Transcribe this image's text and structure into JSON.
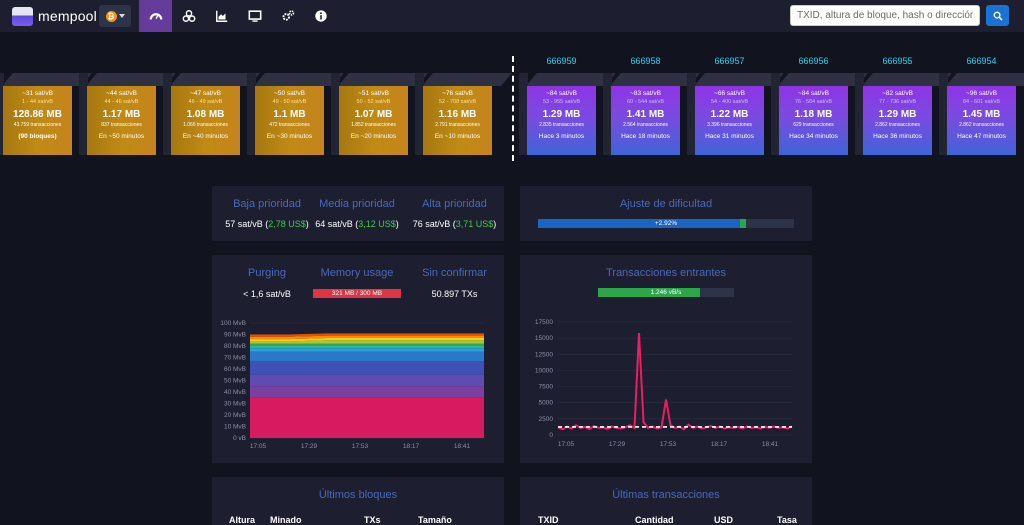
{
  "brand": {
    "name": "mempool",
    "network_icon": "bitcoin-icon"
  },
  "nav": [
    {
      "icon": "dashboard-icon",
      "active": true
    },
    {
      "icon": "blocks-icon",
      "active": false
    },
    {
      "icon": "graphs-icon",
      "active": false
    },
    {
      "icon": "tv-icon",
      "active": false
    },
    {
      "icon": "cogs-icon",
      "active": false
    },
    {
      "icon": "info-icon",
      "active": false
    }
  ],
  "search": {
    "placeholder": "TXID, altura de bloque, hash o dirección",
    "button_icon": "search-icon"
  },
  "mempool_blocks": [
    {
      "fee": "~31 sat/vB",
      "range": "1 - 44 sat/vB",
      "size": "128.86 MB",
      "txs": "43.759 transacciones",
      "eta": "(90 bloques)"
    },
    {
      "fee": "~44 sat/vB",
      "range": "44 - 46 sat/vB",
      "size": "1.17 MB",
      "txs": "837 transacciones",
      "eta": "En ~50 minutos"
    },
    {
      "fee": "~47 sat/vB",
      "range": "46 - 49 sat/vB",
      "size": "1.08 MB",
      "txs": "1.066 transacciones",
      "eta": "En ~40 minutos"
    },
    {
      "fee": "~50 sat/vB",
      "range": "49 - 50 sat/vB",
      "size": "1.1 MB",
      "txs": "472 transacciones",
      "eta": "En ~30 minutos"
    },
    {
      "fee": "~51 sat/vB",
      "range": "50 - 52 sat/vB",
      "size": "1.07 MB",
      "txs": "1.852 transacciones",
      "eta": "En ~20 minutos"
    },
    {
      "fee": "~76 sat/vB",
      "range": "52 - 708 sat/vB",
      "size": "1.16 MB",
      "txs": "2.791 transacciones",
      "eta": "En ~10 minutos"
    }
  ],
  "mined_blocks": [
    {
      "height": "666959",
      "fee": "~84 sat/vB",
      "range": "53 - 955 sat/vB",
      "size": "1.29 MB",
      "txs": "2.835 transacciones",
      "time": "Hace 3 minutos"
    },
    {
      "height": "666958",
      "fee": "~83 sat/vB",
      "range": "60 - 544 sat/vB",
      "size": "1.41 MB",
      "txs": "2.564 transacciones",
      "time": "Hace 18 minutos"
    },
    {
      "height": "666957",
      "fee": "~66 sat/vB",
      "range": "54 - 400 sat/vB",
      "size": "1.22 MB",
      "txs": "3.396 transacciones",
      "time": "Hace 31 minutos"
    },
    {
      "height": "666956",
      "fee": "~84 sat/vB",
      "range": "76 - 584 sat/vB",
      "size": "1.18 MB",
      "txs": "629 transacciones",
      "time": "Hace 34 minutos"
    },
    {
      "height": "666955",
      "fee": "~82 sat/vB",
      "range": "77 - 736 sat/vB",
      "size": "1.29 MB",
      "txs": "2.862 transacciones",
      "time": "Hace 36 minutos"
    },
    {
      "height": "666954",
      "fee": "~96 sat/vB",
      "range": "84 - 601 sat/vB",
      "size": "1.45 MB",
      "txs": "2.862 transacciones",
      "time": "Hace 47 minutos"
    }
  ],
  "fees": {
    "low": {
      "title": "Baja prioridad",
      "rate": "57 sat/vB",
      "usd": "2,78 US$"
    },
    "medium": {
      "title": "Media prioridad",
      "rate": "64 sat/vB",
      "usd": "3,12 US$"
    },
    "high": {
      "title": "Alta prioridad",
      "rate": "76 sat/vB",
      "usd": "3,71 US$"
    }
  },
  "difficulty": {
    "title": "Ajuste de dificultad",
    "label": "+2.92%",
    "progress_fraction": 0.79
  },
  "mempool_info": {
    "purging": {
      "title": "Purging",
      "value": "< 1,6 sat/vB"
    },
    "memory": {
      "title": "Memory usage",
      "value": "321 MB / 300 MB",
      "fraction": 1.0
    },
    "unconfirmed": {
      "title": "Sin confirmar",
      "value": "50.897 TXs"
    }
  },
  "incoming": {
    "title": "Transacciones entrantes",
    "rate": "1.246 vB/s",
    "fraction": 0.75
  },
  "latest_blocks": {
    "title": "Últimos bloques",
    "columns": [
      "Altura",
      "Minado",
      "TXs",
      "Tamaño"
    ]
  },
  "latest_txs": {
    "title": "Últimas transacciones",
    "columns": [
      "TXID",
      "Cantidad",
      "USD",
      "Tasa"
    ]
  },
  "chart_data": [
    {
      "type": "area",
      "stacked": true,
      "ylabels": [
        "100 MvB",
        "90 MvB",
        "80 MvB",
        "70 MvB",
        "60 MvB",
        "50 MvB",
        "40 MvB",
        "30 MvB",
        "20 MvB",
        "10 MvB",
        "0 vB"
      ],
      "ylim": [
        0,
        100
      ],
      "x_ticks": [
        "17:05",
        "17:29",
        "17:53",
        "18:17",
        "18:41"
      ],
      "series": [
        {
          "color": "#d81b60",
          "values": [
            35,
            35,
            35,
            35,
            35,
            35,
            35
          ]
        },
        {
          "color": "#7b3fa0",
          "values": [
            10,
            10,
            10,
            10,
            10,
            10,
            10
          ]
        },
        {
          "color": "#5e4cb0",
          "values": [
            10,
            10,
            10,
            10,
            10,
            10,
            10
          ]
        },
        {
          "color": "#3f51b5",
          "values": [
            12,
            12,
            12,
            12,
            12,
            12,
            12
          ]
        },
        {
          "color": "#2979c8",
          "values": [
            8,
            8,
            8,
            8,
            8,
            8,
            8
          ]
        },
        {
          "color": "#29a3d8",
          "values": [
            3,
            3,
            3,
            3,
            3,
            3,
            3
          ]
        },
        {
          "color": "#26b6a8",
          "values": [
            2,
            2,
            2,
            2,
            2,
            2,
            2
          ]
        },
        {
          "color": "#43a047",
          "values": [
            2,
            2,
            2,
            2,
            2,
            2,
            2
          ]
        },
        {
          "color": "#9ccc37",
          "values": [
            2,
            2,
            3,
            3,
            3,
            3,
            3
          ]
        },
        {
          "color": "#ffca28",
          "values": [
            2,
            2,
            2,
            2,
            2,
            2,
            2
          ]
        },
        {
          "color": "#fb8c00",
          "values": [
            2,
            2,
            2,
            2,
            2,
            2,
            2
          ]
        },
        {
          "color": "#e65100",
          "values": [
            2,
            2,
            2,
            2,
            2,
            2,
            2
          ]
        }
      ]
    },
    {
      "type": "line",
      "ylabels": [
        "17500",
        "15000",
        "12500",
        "10000",
        "7500",
        "5000",
        "2500",
        "0"
      ],
      "ylim": [
        0,
        17500
      ],
      "x_ticks": [
        "17:05",
        "17:29",
        "17:53",
        "18:17",
        "18:41"
      ],
      "threshold": 1246,
      "series": [
        {
          "color": "#e91e63",
          "values": [
            1200,
            900,
            1300,
            1000,
            1500,
            1100,
            1250,
            900,
            1400,
            1100,
            1200,
            950,
            1300,
            1100,
            1000,
            1200,
            1500,
            1100,
            15800,
            2000,
            1100,
            1300,
            1000,
            1200,
            5500,
            1500,
            1100,
            1300,
            900,
            1600,
            1100,
            1300,
            1000,
            1200,
            1400,
            1100,
            1300,
            1000,
            1200,
            1100,
            1250,
            1000,
            1300,
            1100,
            1200,
            1000,
            1250,
            1100,
            1300,
            1100,
            1200,
            1000,
            1350
          ]
        }
      ]
    }
  ]
}
